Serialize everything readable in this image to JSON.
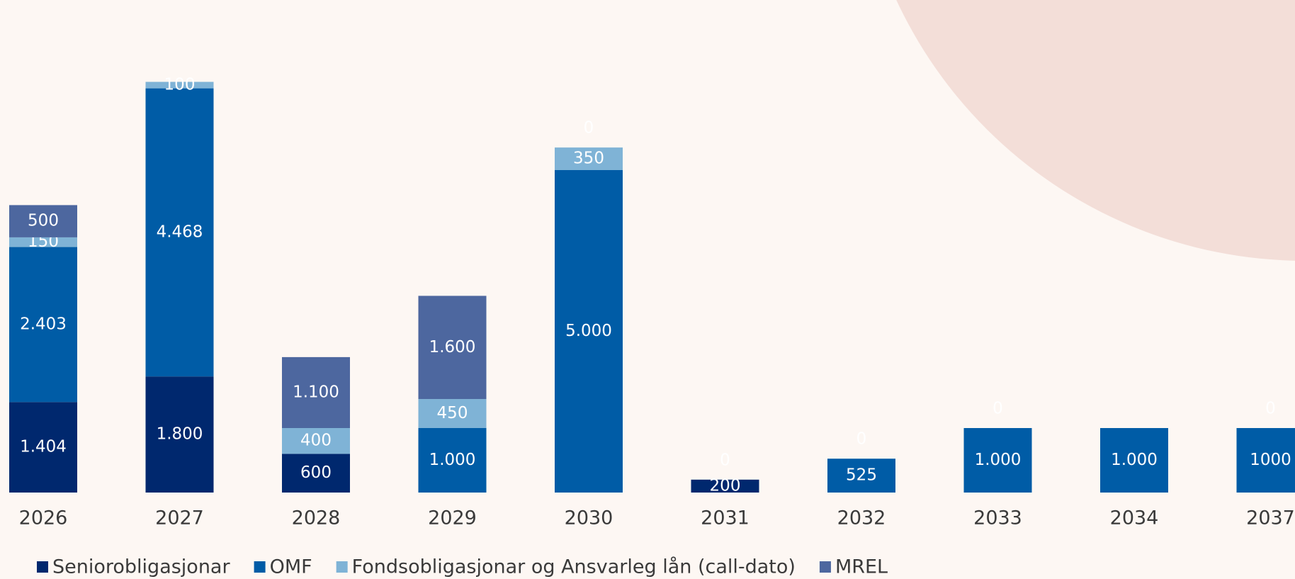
{
  "chart_data": {
    "type": "bar",
    "stacked": true,
    "categories": [
      "2026",
      "2027",
      "2028",
      "2029",
      "2030",
      "2031",
      "2032",
      "2033",
      "2034",
      "2037"
    ],
    "series": [
      {
        "name": "Seniorobligasjonar",
        "color": "#00286e",
        "values": [
          1404,
          1800,
          600,
          null,
          null,
          200,
          null,
          null,
          null,
          null
        ],
        "value_labels": [
          "1.404",
          "1.800",
          "600",
          null,
          null,
          "200",
          null,
          null,
          null,
          null
        ]
      },
      {
        "name": "OMF",
        "color": "#005ca6",
        "values": [
          2403,
          4468,
          null,
          1000,
          5000,
          null,
          525,
          1000,
          1000,
          1000
        ],
        "value_labels": [
          "2.403",
          "4.468",
          null,
          "1.000",
          "5.000",
          null,
          "525",
          "1.000",
          "1.000",
          "1000"
        ]
      },
      {
        "name": "Fondsobligasjonar og Ansvarleg lån (call-dato)",
        "color": "#7fb3d6",
        "values": [
          150,
          100,
          400,
          450,
          350,
          null,
          null,
          null,
          null,
          null
        ],
        "value_labels": [
          "150",
          "100",
          "400",
          "450",
          "350",
          null,
          null,
          null,
          null,
          null
        ]
      },
      {
        "name": "MREL",
        "color": "#4d679f",
        "values": [
          500,
          null,
          1100,
          1600,
          0,
          0,
          0,
          0,
          null,
          0
        ],
        "value_labels": [
          "500",
          null,
          "1.100",
          "1.600",
          "0",
          "0",
          "0",
          "0",
          null,
          "0"
        ]
      }
    ],
    "ylim": [
      0,
      7000
    ],
    "legend": "bottom"
  }
}
